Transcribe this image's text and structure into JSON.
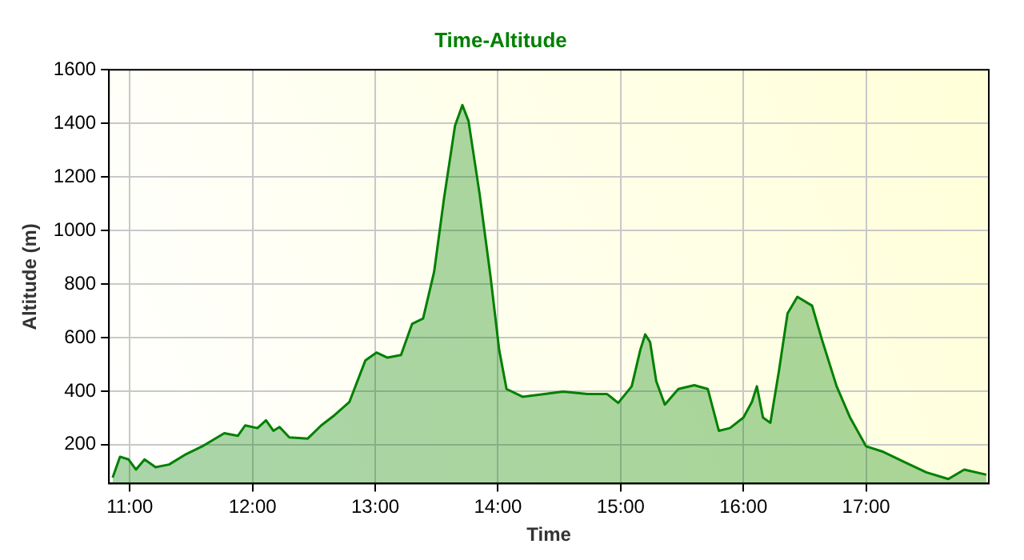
{
  "chart_data": {
    "type": "area",
    "title": "Time-Altitude",
    "xlabel": "Time",
    "ylabel": "Altitude (m)",
    "xlim": [
      10.83,
      18.0
    ],
    "xticks": [
      {
        "value": 11,
        "label": "11:00"
      },
      {
        "value": 12,
        "label": "12:00"
      },
      {
        "value": 13,
        "label": "13:00"
      },
      {
        "value": 14,
        "label": "14:00"
      },
      {
        "value": 15,
        "label": "15:00"
      },
      {
        "value": 16,
        "label": "16:00"
      },
      {
        "value": 17,
        "label": "17:00"
      }
    ],
    "ylim": [
      55,
      1600
    ],
    "yticks": [
      200,
      400,
      600,
      800,
      1000,
      1200,
      1400,
      1600
    ],
    "grid": true,
    "line_style": "solid",
    "marker": "none",
    "series": [
      {
        "color": "#008000",
        "x": [
          10.86,
          10.92,
          10.99,
          11.05,
          11.12,
          11.21,
          11.32,
          11.46,
          11.59,
          11.77,
          11.88,
          11.94,
          12.04,
          12.11,
          12.17,
          12.22,
          12.3,
          12.45,
          12.56,
          12.67,
          12.79,
          12.92,
          13.01,
          13.1,
          13.21,
          13.3,
          13.39,
          13.48,
          13.56,
          13.65,
          13.71,
          13.76,
          13.85,
          13.94,
          14.01,
          14.07,
          14.2,
          14.38,
          14.53,
          14.73,
          14.89,
          14.98,
          15.09,
          15.16,
          15.2,
          15.24,
          15.29,
          15.36,
          15.47,
          15.6,
          15.71,
          15.8,
          15.89,
          16.0,
          16.07,
          16.11,
          16.16,
          16.22,
          16.29,
          16.36,
          16.44,
          16.56,
          16.64,
          16.76,
          16.87,
          17.0,
          17.13,
          17.31,
          17.49,
          17.67,
          17.8,
          17.98
        ],
        "values": [
          77,
          155,
          145,
          107,
          145,
          116,
          126,
          165,
          194,
          243,
          233,
          272,
          262,
          291,
          252,
          266,
          227,
          223,
          272,
          311,
          360,
          515,
          544,
          525,
          535,
          651,
          671,
          846,
          1118,
          1391,
          1468,
          1409,
          1138,
          826,
          554,
          408,
          379,
          389,
          398,
          389,
          389,
          356,
          418,
          554,
          612,
          583,
          437,
          350,
          408,
          422,
          408,
          252,
          262,
          301,
          360,
          418,
          301,
          282,
          476,
          690,
          752,
          719,
          593,
          418,
          301,
          194,
          175,
          136,
          97,
          72,
          107,
          88
        ]
      }
    ]
  }
}
